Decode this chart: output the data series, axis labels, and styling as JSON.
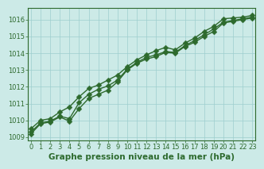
{
  "x": [
    0,
    1,
    2,
    3,
    4,
    5,
    6,
    7,
    8,
    9,
    10,
    11,
    12,
    13,
    14,
    15,
    16,
    17,
    18,
    19,
    20,
    21,
    22,
    23
  ],
  "line_top": [
    1009.5,
    1010.0,
    1010.1,
    1010.5,
    1010.8,
    1011.4,
    1011.9,
    1012.1,
    1012.4,
    1012.7,
    1013.2,
    1013.6,
    1013.9,
    1014.15,
    1014.35,
    1014.2,
    1014.6,
    1014.9,
    1015.3,
    1015.6,
    1016.05,
    1016.1,
    1016.15,
    1016.25
  ],
  "line_mid": [
    1009.3,
    1009.85,
    1009.95,
    1010.25,
    1010.1,
    1011.05,
    1011.55,
    1011.85,
    1012.05,
    1012.4,
    1013.05,
    1013.45,
    1013.75,
    1013.9,
    1014.1,
    1014.05,
    1014.45,
    1014.75,
    1015.1,
    1015.45,
    1015.85,
    1015.95,
    1016.05,
    1016.15
  ],
  "line_bot": [
    1009.2,
    1009.8,
    1009.9,
    1010.2,
    1009.95,
    1010.7,
    1011.3,
    1011.55,
    1011.8,
    1012.3,
    1013.0,
    1013.4,
    1013.65,
    1013.8,
    1014.05,
    1014.0,
    1014.4,
    1014.65,
    1015.0,
    1015.3,
    1015.8,
    1015.9,
    1016.0,
    1016.1
  ],
  "line_color": "#2d6a2d",
  "bg_color": "#cceae7",
  "grid_color": "#9ecece",
  "xlabel": "Graphe pression niveau de la mer (hPa)",
  "ylim": [
    1008.8,
    1016.7
  ],
  "xlim": [
    -0.3,
    23.3
  ],
  "yticks": [
    1009,
    1010,
    1011,
    1012,
    1013,
    1014,
    1015,
    1016
  ],
  "xticks": [
    0,
    1,
    2,
    3,
    4,
    5,
    6,
    7,
    8,
    9,
    10,
    11,
    12,
    13,
    14,
    15,
    16,
    17,
    18,
    19,
    20,
    21,
    22,
    23
  ],
  "markersize": 3.5,
  "linewidth": 1.0,
  "xlabel_fontsize": 7.5,
  "tick_fontsize": 6.0
}
